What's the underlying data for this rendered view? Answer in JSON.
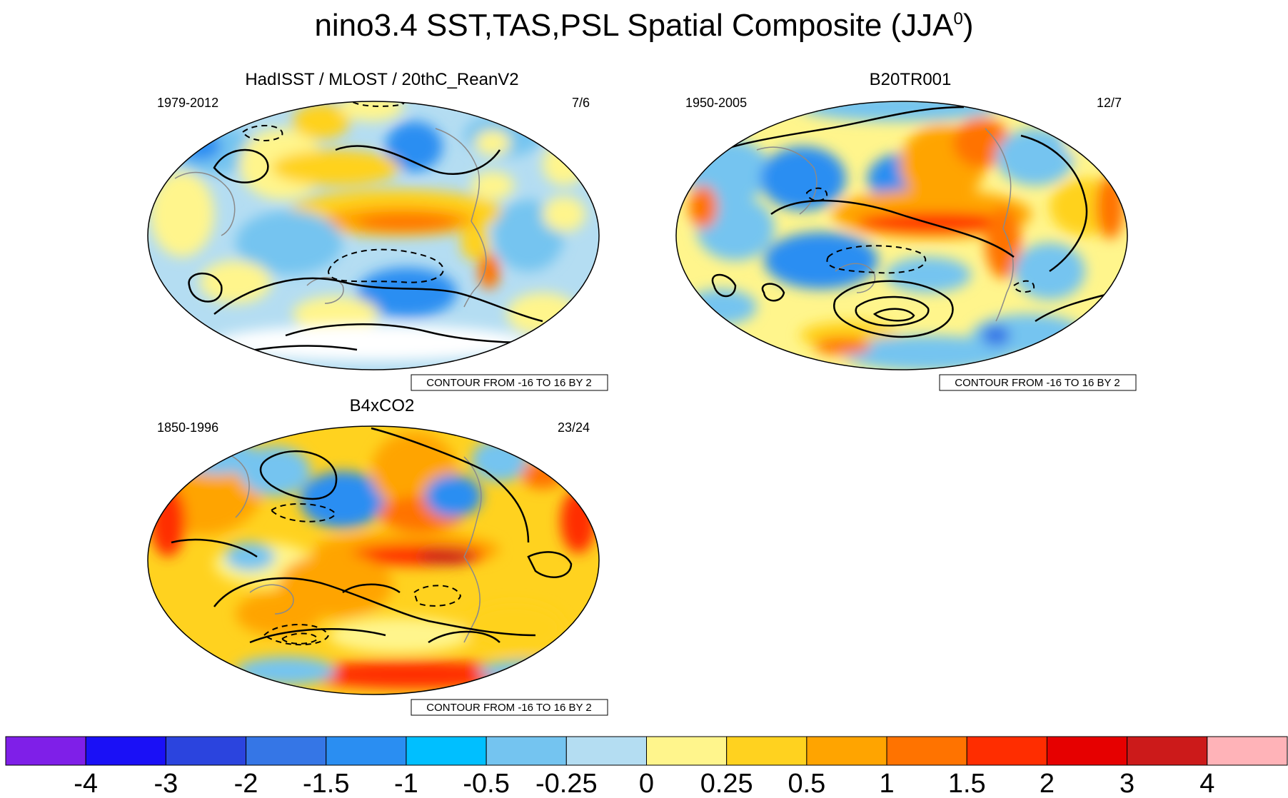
{
  "title": "nino3.4 SST,TAS,PSL Spatial Composite (JJA",
  "title_superscript": "0",
  "title_close": ")",
  "panels": [
    {
      "title": "HadISST / MLOST / 20thC_ReanV2",
      "period": "1979-2012",
      "count": "7/6",
      "contour_note": "CONTOUR FROM -16 TO 16 BY 2",
      "contour_levels": {
        "min": -16,
        "max": 16,
        "step": 2
      }
    },
    {
      "title": "B20TR001",
      "period": "1950-2005",
      "count": "12/7",
      "contour_note": "CONTOUR FROM -16 TO 16 BY 2",
      "contour_levels": {
        "min": -16,
        "max": 16,
        "step": 2
      }
    },
    {
      "title": "B4xCO2",
      "period": "1850-1996",
      "count": "23/24",
      "contour_note": "CONTOUR FROM -16 TO 16 BY 2",
      "contour_levels": {
        "min": -16,
        "max": 16,
        "step": 2
      }
    }
  ],
  "colorbar": {
    "labels": [
      "-4",
      "-3",
      "-2",
      "-1.5",
      "-1",
      "-0.5",
      "-0.25",
      "0",
      "0.25",
      "0.5",
      "1",
      "1.5",
      "2",
      "3",
      "4"
    ],
    "colors": [
      "#7f1fe8",
      "#1a10f6",
      "#2b44de",
      "#3576e6",
      "#2a8ef2",
      "#00bfff",
      "#74c4f0",
      "#b4ddf2",
      "#fff58c",
      "#ffd21f",
      "#ffa400",
      "#ff7300",
      "#ff2d00",
      "#e60000",
      "#cc1a1a",
      "#ffb3b8"
    ]
  },
  "map": {
    "projection": "Robinson",
    "center_longitude": 180,
    "ocean_background": "#b4ddf2"
  }
}
